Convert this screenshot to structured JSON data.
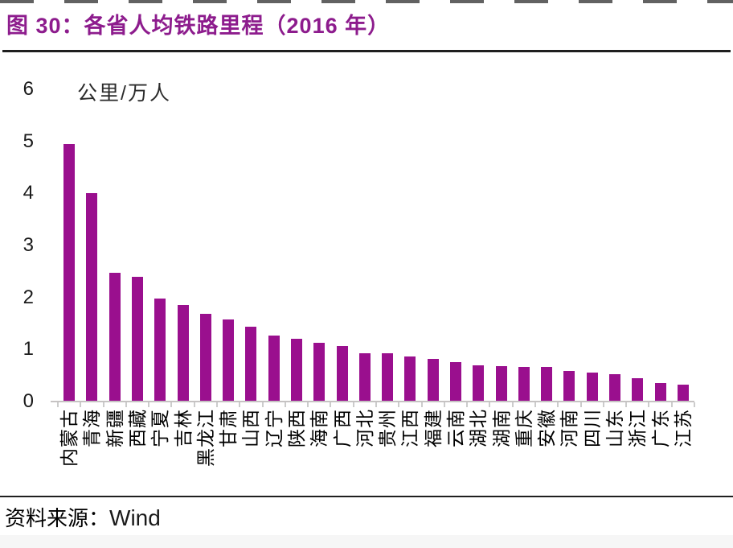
{
  "figure": {
    "title": "图 30：各省人均铁路里程（2016 年）",
    "source_label": "资料来源：",
    "source_value": "Wind"
  },
  "colors": {
    "bar": "#9A0F8E",
    "title": "#8D1C8D",
    "rule": "#1F1F1F",
    "axis_line": "#C6C3C3",
    "tick": "#CCCCCC",
    "text": "#1A1A1A"
  },
  "chart_data": {
    "type": "bar",
    "title": "各省人均铁路里程（2016 年）",
    "unit_label": "公里/万人",
    "xlabel": "",
    "ylabel": "公里/万人",
    "ylim": [
      0,
      6
    ],
    "yticks": [
      0,
      1,
      2,
      3,
      4,
      5,
      6
    ],
    "grid": false,
    "legend": "none",
    "bar_color": "#9A0F8E",
    "categories": [
      "内蒙古",
      "青海",
      "新疆",
      "西藏",
      "宁夏",
      "吉林",
      "黑龙江",
      "甘肃",
      "山西",
      "辽宁",
      "陕西",
      "海南",
      "广西",
      "河北",
      "贵州",
      "江西",
      "福建",
      "云南",
      "湖北",
      "湖南",
      "重庆",
      "安徽",
      "河南",
      "四川",
      "山东",
      "浙江",
      "广东",
      "江苏"
    ],
    "values": [
      4.95,
      4.0,
      2.48,
      2.4,
      1.98,
      1.86,
      1.68,
      1.57,
      1.44,
      1.27,
      1.2,
      1.13,
      1.07,
      0.93,
      0.92,
      0.87,
      0.82,
      0.76,
      0.7,
      0.68,
      0.67,
      0.66,
      0.58,
      0.56,
      0.53,
      0.45,
      0.35,
      0.33
    ]
  }
}
